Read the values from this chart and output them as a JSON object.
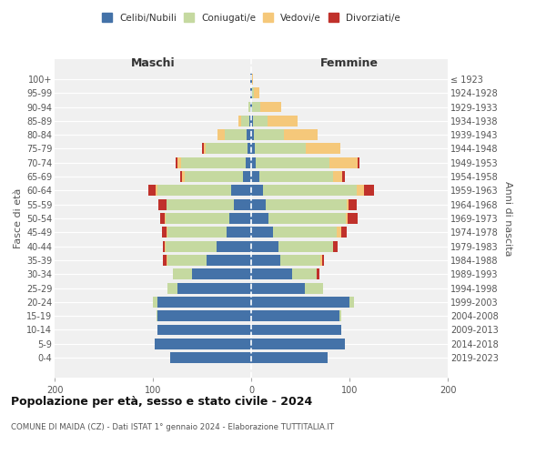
{
  "age_groups": [
    "0-4",
    "5-9",
    "10-14",
    "15-19",
    "20-24",
    "25-29",
    "30-34",
    "35-39",
    "40-44",
    "45-49",
    "50-54",
    "55-59",
    "60-64",
    "65-69",
    "70-74",
    "75-79",
    "80-84",
    "85-89",
    "90-94",
    "95-99",
    "100+"
  ],
  "birth_years": [
    "2019-2023",
    "2014-2018",
    "2009-2013",
    "2004-2008",
    "1999-2003",
    "1994-1998",
    "1989-1993",
    "1984-1988",
    "1979-1983",
    "1974-1978",
    "1969-1973",
    "1964-1968",
    "1959-1963",
    "1954-1958",
    "1949-1953",
    "1944-1948",
    "1939-1943",
    "1934-1938",
    "1929-1933",
    "1924-1928",
    "≤ 1923"
  ],
  "maschi": {
    "celibi": [
      82,
      98,
      95,
      95,
      95,
      75,
      60,
      45,
      35,
      25,
      22,
      18,
      20,
      8,
      6,
      4,
      5,
      2,
      1,
      1,
      1
    ],
    "coniugati": [
      0,
      0,
      0,
      1,
      5,
      10,
      20,
      40,
      52,
      60,
      65,
      68,
      75,
      60,
      65,
      42,
      22,
      8,
      2,
      0,
      0
    ],
    "vedovi": [
      0,
      0,
      0,
      0,
      0,
      0,
      0,
      1,
      1,
      1,
      1,
      0,
      2,
      2,
      4,
      2,
      7,
      3,
      0,
      0,
      0
    ],
    "divorziati": [
      0,
      0,
      0,
      0,
      0,
      0,
      0,
      4,
      2,
      5,
      5,
      8,
      8,
      2,
      2,
      2,
      0,
      0,
      0,
      0,
      0
    ]
  },
  "femmine": {
    "nubili": [
      78,
      95,
      92,
      90,
      100,
      55,
      42,
      30,
      28,
      22,
      18,
      15,
      12,
      8,
      5,
      4,
      3,
      2,
      1,
      1,
      1
    ],
    "coniugate": [
      0,
      0,
      0,
      2,
      5,
      18,
      25,
      40,
      55,
      65,
      78,
      82,
      95,
      75,
      75,
      52,
      30,
      15,
      8,
      2,
      0
    ],
    "vedove": [
      0,
      0,
      0,
      0,
      0,
      0,
      0,
      2,
      0,
      5,
      2,
      2,
      8,
      10,
      28,
      35,
      35,
      30,
      22,
      5,
      1
    ],
    "divorziate": [
      0,
      0,
      0,
      0,
      0,
      0,
      2,
      2,
      5,
      5,
      10,
      8,
      10,
      2,
      2,
      0,
      0,
      0,
      0,
      0,
      0
    ]
  },
  "colors": {
    "celibi_nubili": "#4472a8",
    "coniugati_e": "#c5d9a0",
    "vedovi_e": "#f5c87a",
    "divorziati_e": "#c0312b"
  },
  "xlim": 200,
  "title": "Popolazione per età, sesso e stato civile - 2024",
  "subtitle": "COMUNE DI MAIDA (CZ) - Dati ISTAT 1° gennaio 2024 - Elaborazione TUTTITALIA.IT",
  "ylabel_left": "Fasce di età",
  "ylabel_right": "Anni di nascita",
  "xlabel_left": "Maschi",
  "xlabel_right": "Femmine",
  "bg_color": "#f0f0f0"
}
